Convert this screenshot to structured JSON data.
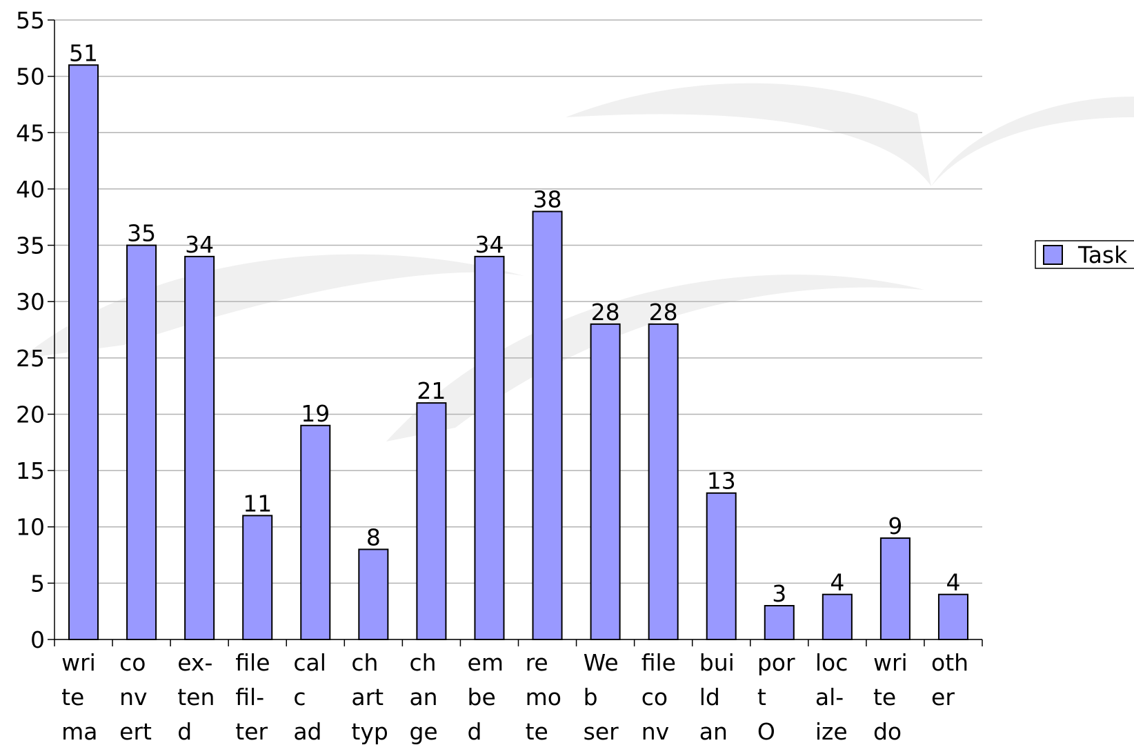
{
  "chart_data": {
    "type": "bar",
    "categories": [
      [
        "wri",
        "te",
        "ma"
      ],
      [
        "co",
        "nv",
        "ert"
      ],
      [
        "ex-",
        "ten",
        "d"
      ],
      [
        "file",
        "fil-",
        "ter"
      ],
      [
        "cal",
        "c",
        "ad"
      ],
      [
        "ch",
        "art",
        "typ"
      ],
      [
        "ch",
        "an",
        "ge"
      ],
      [
        "em",
        "be",
        "d"
      ],
      [
        "re",
        "mo",
        "te"
      ],
      [
        "We",
        "b",
        "ser"
      ],
      [
        "file",
        "co",
        "nv"
      ],
      [
        "bui",
        "ld",
        "an"
      ],
      [
        "por",
        "t",
        "O"
      ],
      [
        "loc",
        "al-",
        "ize"
      ],
      [
        "wri",
        "te",
        "do"
      ],
      [
        "oth",
        "er"
      ]
    ],
    "series": [
      {
        "name": "Task",
        "color": "#9999ff",
        "values": [
          51,
          35,
          34,
          11,
          19,
          8,
          21,
          34,
          38,
          28,
          28,
          13,
          3,
          4,
          9,
          4
        ]
      }
    ],
    "ylim": [
      0,
      55
    ],
    "yticks": [
      0,
      5,
      10,
      15,
      20,
      25,
      30,
      35,
      40,
      45,
      50,
      55
    ],
    "grid": true,
    "legend": "right"
  }
}
